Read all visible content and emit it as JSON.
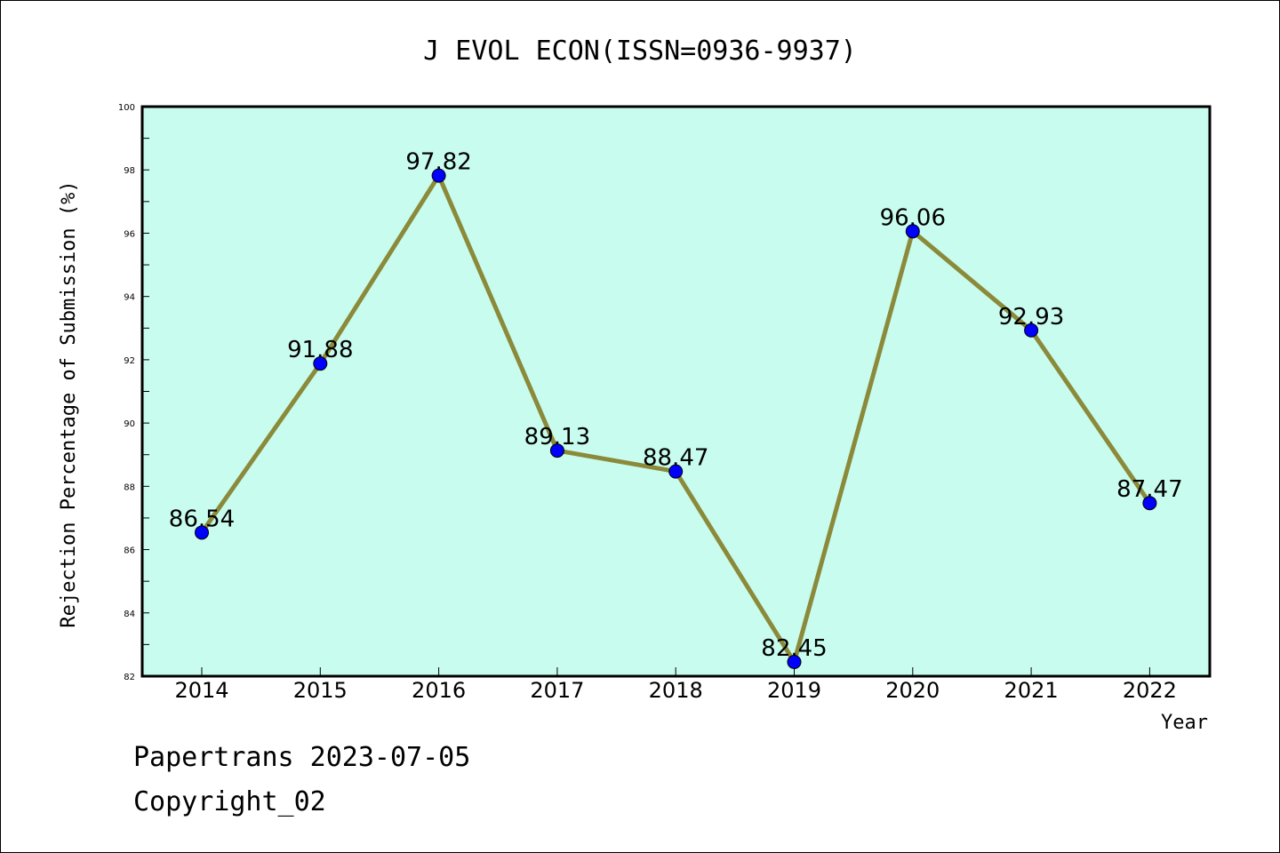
{
  "footer": {
    "line1": "Papertrans 2023-07-05",
    "line2": "Copyright_02"
  },
  "chart_data": {
    "type": "line",
    "title": "J EVOL ECON(ISSN=0936-9937)",
    "xlabel": "Year",
    "ylabel": "Rejection Percentage of Submission (%)",
    "categories": [
      "2014",
      "2015",
      "2016",
      "2017",
      "2018",
      "2019",
      "2020",
      "2021",
      "2022"
    ],
    "values": [
      86.54,
      91.88,
      97.82,
      89.13,
      88.47,
      82.45,
      96.06,
      92.93,
      87.47
    ],
    "value_labels": [
      "86.54",
      "91.88",
      "97.82",
      "89.13",
      "88.47",
      "82.45",
      "96.06",
      "92.93",
      "87.47"
    ],
    "ylim": [
      82,
      100
    ],
    "yticks": [
      "82",
      "84",
      "86",
      "88",
      "90",
      "92",
      "94",
      "96",
      "98",
      "100"
    ],
    "grid": false,
    "colors": {
      "plot_background": "#c8fcee",
      "line": "#8b8a3a",
      "marker": "#0000ff"
    }
  }
}
